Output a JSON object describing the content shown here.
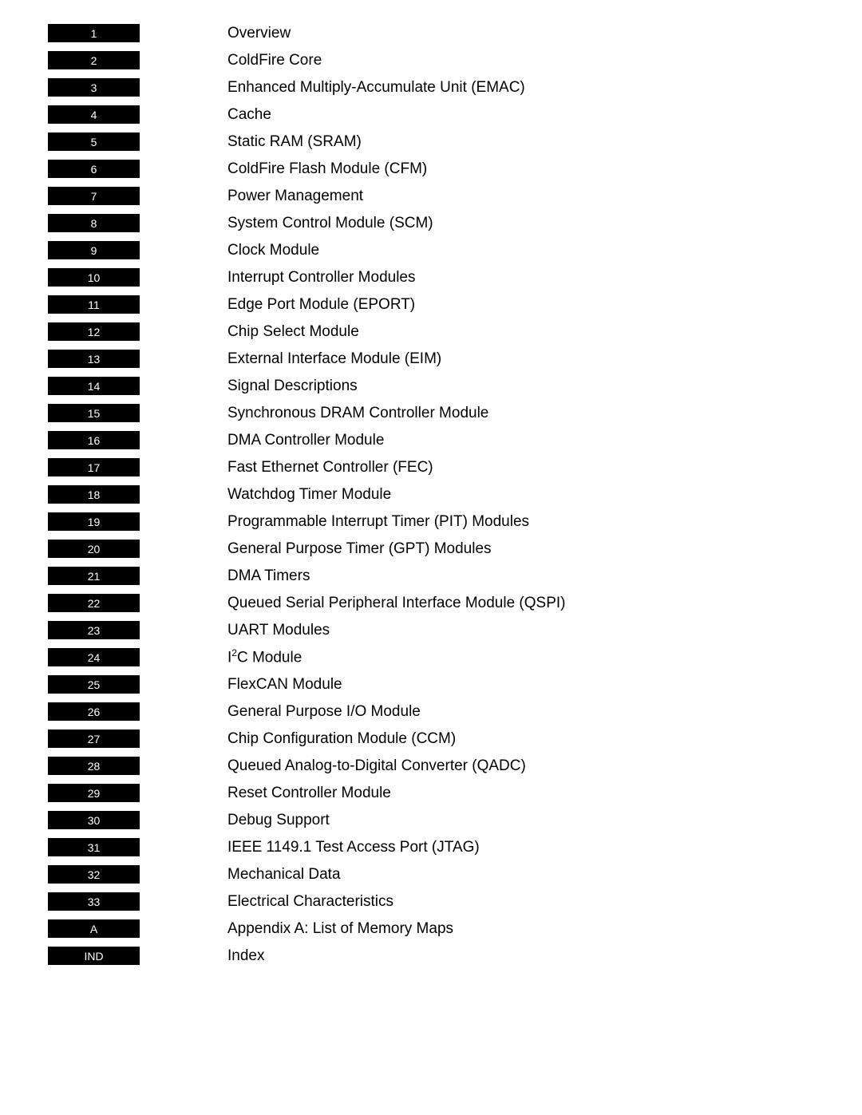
{
  "toc": {
    "entries": [
      {
        "number": "1",
        "title": "Overview"
      },
      {
        "number": "2",
        "title": "ColdFire Core"
      },
      {
        "number": "3",
        "title": "Enhanced Multiply-Accumulate Unit (EMAC)"
      },
      {
        "number": "4",
        "title": "Cache"
      },
      {
        "number": "5",
        "title": "Static RAM (SRAM)"
      },
      {
        "number": "6",
        "title": "ColdFire Flash Module (CFM)"
      },
      {
        "number": "7",
        "title": "Power Management"
      },
      {
        "number": "8",
        "title": "System Control Module (SCM)"
      },
      {
        "number": "9",
        "title": "Clock Module"
      },
      {
        "number": "10",
        "title": "Interrupt Controller Modules"
      },
      {
        "number": "11",
        "title": "Edge Port Module (EPORT)"
      },
      {
        "number": "12",
        "title": "Chip Select Module"
      },
      {
        "number": "13",
        "title": "External Interface Module (EIM)"
      },
      {
        "number": "14",
        "title": "Signal Descriptions"
      },
      {
        "number": "15",
        "title": "Synchronous DRAM Controller Module"
      },
      {
        "number": "16",
        "title": "DMA Controller Module"
      },
      {
        "number": "17",
        "title": "Fast Ethernet Controller (FEC)"
      },
      {
        "number": "18",
        "title": "Watchdog Timer Module"
      },
      {
        "number": "19",
        "title": "Programmable Interrupt Timer (PIT) Modules"
      },
      {
        "number": "20",
        "title": "General Purpose Timer (GPT) Modules"
      },
      {
        "number": "21",
        "title": "DMA Timers"
      },
      {
        "number": "22",
        "title": "Queued Serial Peripheral Interface Module (QSPI)"
      },
      {
        "number": "23",
        "title": "UART Modules"
      },
      {
        "number": "24",
        "title": "I2C Module",
        "has_superscript": true
      },
      {
        "number": "25",
        "title": "FlexCAN Module"
      },
      {
        "number": "26",
        "title": "General Purpose I/O Module"
      },
      {
        "number": "27",
        "title": "Chip Configuration Module (CCM)"
      },
      {
        "number": "28",
        "title": "Queued Analog-to-Digital Converter (QADC)"
      },
      {
        "number": "29",
        "title": "Reset Controller Module"
      },
      {
        "number": "30",
        "title": "Debug Support"
      },
      {
        "number": "31",
        "title": "IEEE 1149.1 Test Access Port (JTAG)"
      },
      {
        "number": "32",
        "title": "Mechanical Data"
      },
      {
        "number": "33",
        "title": "Electrical Characteristics"
      },
      {
        "number": "A",
        "title": "Appendix A: List of Memory Maps"
      },
      {
        "number": "IND",
        "title": "Index"
      }
    ],
    "styling": {
      "tab_background_color": "#000000",
      "tab_text_color": "#ffffff",
      "tab_width": 115,
      "tab_height": 23,
      "tab_font_size": 14,
      "title_color": "#000000",
      "title_font_size": 19,
      "row_gap": 11,
      "page_background": "#ffffff",
      "tab_title_gap": 110
    }
  }
}
